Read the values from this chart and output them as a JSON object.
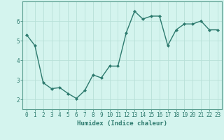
{
  "x": [
    0,
    1,
    2,
    3,
    4,
    5,
    6,
    7,
    8,
    9,
    10,
    11,
    12,
    13,
    14,
    15,
    16,
    17,
    18,
    19,
    20,
    21,
    22,
    23
  ],
  "y": [
    5.3,
    4.75,
    2.85,
    2.55,
    2.6,
    2.3,
    2.05,
    2.45,
    3.25,
    3.1,
    3.7,
    3.7,
    5.4,
    6.5,
    6.1,
    6.25,
    6.25,
    4.75,
    5.55,
    5.85,
    5.85,
    6.0,
    5.55,
    5.55
  ],
  "line_color": "#2d7a6e",
  "marker": "D",
  "marker_size": 2.0,
  "line_width": 1.0,
  "bg_color": "#d4f4ee",
  "grid_color": "#b8e0d8",
  "xlabel": "Humidex (Indice chaleur)",
  "xlim_min": -0.5,
  "xlim_max": 23.5,
  "ylim_min": 1.5,
  "ylim_max": 7.0,
  "yticks": [
    2,
    3,
    4,
    5,
    6
  ],
  "xticks": [
    0,
    1,
    2,
    3,
    4,
    5,
    6,
    7,
    8,
    9,
    10,
    11,
    12,
    13,
    14,
    15,
    16,
    17,
    18,
    19,
    20,
    21,
    22,
    23
  ],
  "xlabel_fontsize": 6.5,
  "tick_fontsize": 5.5,
  "tick_color": "#2d7a6e",
  "axis_color": "#2d7a6e",
  "spine_color": "#5a9e90"
}
